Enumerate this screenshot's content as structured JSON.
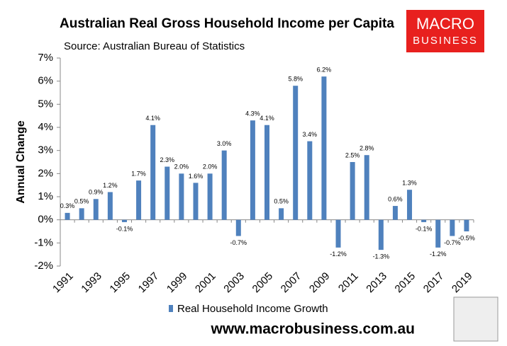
{
  "chart_data": {
    "type": "bar",
    "title": "Australian Real Gross Household Income per Capita",
    "subtitle": "Source: Australian Bureau of Statistics",
    "y_label": "Annual Change",
    "categories": [
      "1991",
      null,
      "1993",
      null,
      "1995",
      null,
      "1997",
      null,
      "1999",
      null,
      "2001",
      null,
      "2003",
      null,
      "2005",
      null,
      "2007",
      null,
      "2009",
      null,
      "2011",
      null,
      "2013",
      null,
      "2015",
      null,
      "2017",
      null,
      "2019"
    ],
    "series": [
      {
        "name": "Real Household Income Growth",
        "color": "#4f81bd",
        "values": [
          0.3,
          0.5,
          0.9,
          1.2,
          -0.1,
          1.7,
          4.1,
          2.3,
          2.0,
          1.6,
          2.0,
          3.0,
          -0.7,
          4.3,
          4.1,
          0.5,
          5.8,
          3.4,
          6.2,
          -1.2,
          2.5,
          2.8,
          -1.3,
          0.6,
          1.3,
          -0.1,
          -1.2,
          -0.7,
          -0.5
        ],
        "value_labels": [
          "0.3%",
          "0.5%",
          "0.9%",
          "1.2%",
          "-0.1%",
          "1.7%",
          "4.1%",
          "2.3%",
          "2.0%",
          "1.6%",
          "2.0%",
          "3.0%",
          "-0.7%",
          "4.3%",
          "4.1%",
          "0.5%",
          "5.8%",
          "3.4%",
          "6.2%",
          "-1.2%",
          "2.5%",
          "2.8%",
          "-1.3%",
          "0.6%",
          "1.3%",
          "-0.1%",
          "-1.2%",
          "-0.7%",
          "-0.5%"
        ]
      }
    ],
    "ylim": [
      -2,
      7
    ],
    "yticks": [
      {
        "value": -2,
        "label": "-2%"
      },
      {
        "value": -1,
        "label": "-1%"
      },
      {
        "value": 0,
        "label": "0%"
      },
      {
        "value": 1,
        "label": "1%"
      },
      {
        "value": 2,
        "label": "2%"
      },
      {
        "value": 3,
        "label": "3%"
      },
      {
        "value": 4,
        "label": "4%"
      },
      {
        "value": 5,
        "label": "5%"
      },
      {
        "value": 6,
        "label": "6%"
      },
      {
        "value": 7,
        "label": "7%"
      }
    ],
    "grid": false,
    "legend": "bottom"
  },
  "logo": {
    "line1": "MACRO",
    "line2": "BUSINESS"
  },
  "website": "www.macrobusiness.com.au"
}
